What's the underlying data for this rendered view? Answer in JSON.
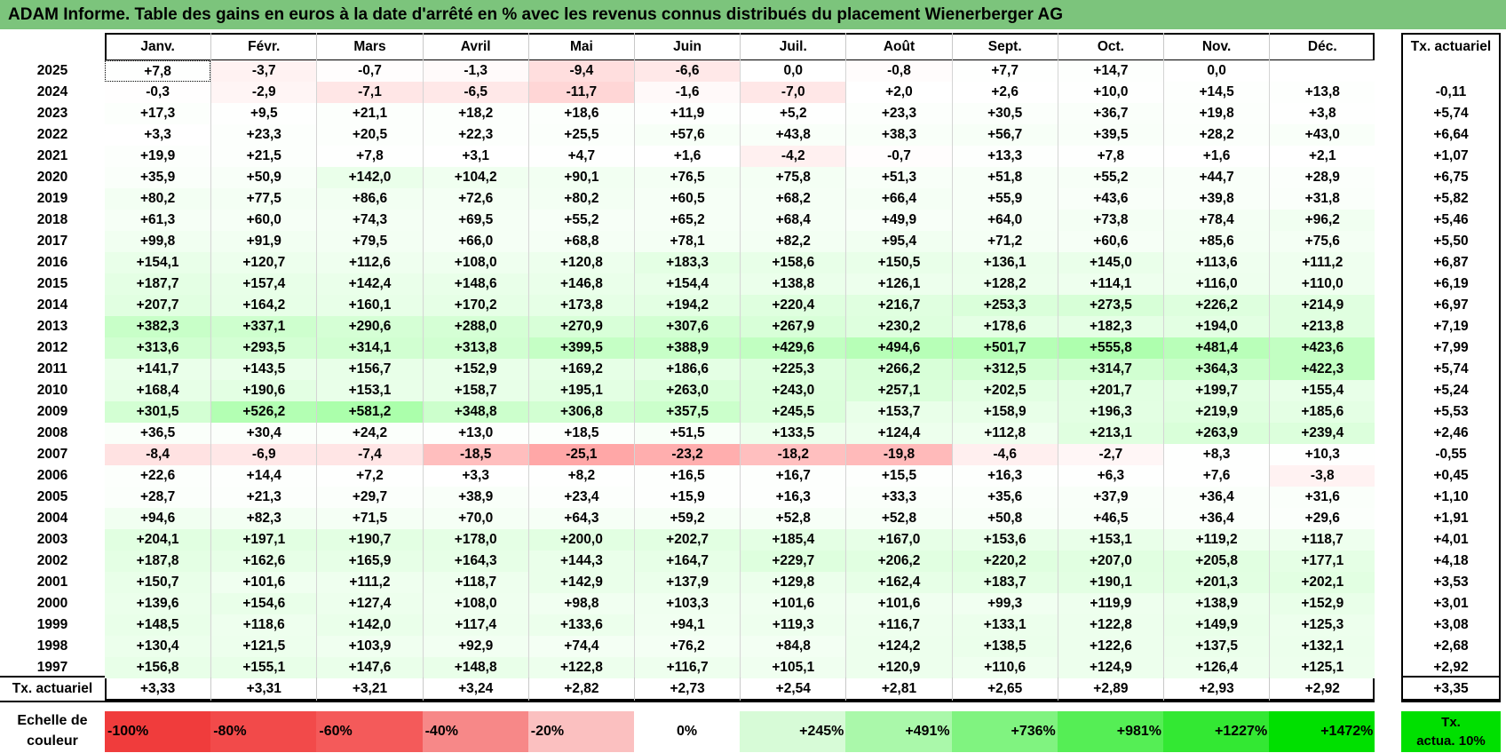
{
  "title": "ADAM Informe. Table des gains en euros à la date d'arrêté en % avec les revenus connus distribués du placement Wienerberger AG",
  "chart_data": {
    "type": "heatmap",
    "columns": [
      "Janv.",
      "Févr.",
      "Mars",
      "Avril",
      "Mai",
      "Juin",
      "Juil.",
      "Août",
      "Sept.",
      "Oct.",
      "Nov.",
      "Déc."
    ],
    "rate_header": "Tx. actuariel",
    "rows": [
      {
        "year": "2025",
        "values": [
          "+7,8",
          "-3,7",
          "-0,7",
          "-1,3",
          "-9,4",
          "-6,6",
          "0,0",
          "-0,8",
          "+7,7",
          "+14,7",
          "0,0",
          ""
        ],
        "rate": ""
      },
      {
        "year": "2024",
        "values": [
          "-0,3",
          "-2,9",
          "-7,1",
          "-6,5",
          "-11,7",
          "-1,6",
          "-7,0",
          "+2,0",
          "+2,6",
          "+10,0",
          "+14,5",
          "+13,8"
        ],
        "rate": "-0,11"
      },
      {
        "year": "2023",
        "values": [
          "+17,3",
          "+9,5",
          "+21,1",
          "+18,2",
          "+18,6",
          "+11,9",
          "+5,2",
          "+23,3",
          "+30,5",
          "+36,7",
          "+19,8",
          "+3,8"
        ],
        "rate": "+5,74"
      },
      {
        "year": "2022",
        "values": [
          "+3,3",
          "+23,3",
          "+20,5",
          "+22,3",
          "+25,5",
          "+57,6",
          "+43,8",
          "+38,3",
          "+56,7",
          "+39,5",
          "+28,2",
          "+43,0"
        ],
        "rate": "+6,64"
      },
      {
        "year": "2021",
        "values": [
          "+19,9",
          "+21,5",
          "+7,8",
          "+3,1",
          "+4,7",
          "+1,6",
          "-4,2",
          "-0,7",
          "+13,3",
          "+7,8",
          "+1,6",
          "+2,1"
        ],
        "rate": "+1,07"
      },
      {
        "year": "2020",
        "values": [
          "+35,9",
          "+50,9",
          "+142,0",
          "+104,2",
          "+90,1",
          "+76,5",
          "+75,8",
          "+51,3",
          "+51,8",
          "+55,2",
          "+44,7",
          "+28,9"
        ],
        "rate": "+6,75"
      },
      {
        "year": "2019",
        "values": [
          "+80,2",
          "+77,5",
          "+86,6",
          "+72,6",
          "+80,2",
          "+60,5",
          "+68,2",
          "+66,4",
          "+55,9",
          "+43,6",
          "+39,8",
          "+31,8"
        ],
        "rate": "+5,82"
      },
      {
        "year": "2018",
        "values": [
          "+61,3",
          "+60,0",
          "+74,3",
          "+69,5",
          "+55,2",
          "+65,2",
          "+68,4",
          "+49,9",
          "+64,0",
          "+73,8",
          "+78,4",
          "+96,2"
        ],
        "rate": "+5,46"
      },
      {
        "year": "2017",
        "values": [
          "+99,8",
          "+91,9",
          "+79,5",
          "+66,0",
          "+68,8",
          "+78,1",
          "+82,2",
          "+95,4",
          "+71,2",
          "+60,6",
          "+85,6",
          "+75,6"
        ],
        "rate": "+5,50"
      },
      {
        "year": "2016",
        "values": [
          "+154,1",
          "+120,7",
          "+112,6",
          "+108,0",
          "+120,8",
          "+183,3",
          "+158,6",
          "+150,5",
          "+136,1",
          "+145,0",
          "+113,6",
          "+111,2"
        ],
        "rate": "+6,87"
      },
      {
        "year": "2015",
        "values": [
          "+187,7",
          "+157,4",
          "+142,4",
          "+148,6",
          "+146,8",
          "+154,4",
          "+138,8",
          "+126,1",
          "+128,2",
          "+114,1",
          "+116,0",
          "+110,0"
        ],
        "rate": "+6,19"
      },
      {
        "year": "2014",
        "values": [
          "+207,7",
          "+164,2",
          "+160,1",
          "+170,2",
          "+173,8",
          "+194,2",
          "+220,4",
          "+216,7",
          "+253,3",
          "+273,5",
          "+226,2",
          "+214,9"
        ],
        "rate": "+6,97"
      },
      {
        "year": "2013",
        "values": [
          "+382,3",
          "+337,1",
          "+290,6",
          "+288,0",
          "+270,9",
          "+307,6",
          "+267,9",
          "+230,2",
          "+178,6",
          "+182,3",
          "+194,0",
          "+213,8"
        ],
        "rate": "+7,19"
      },
      {
        "year": "2012",
        "values": [
          "+313,6",
          "+293,5",
          "+314,1",
          "+313,8",
          "+399,5",
          "+388,9",
          "+429,6",
          "+494,6",
          "+501,7",
          "+555,8",
          "+481,4",
          "+423,6"
        ],
        "rate": "+7,99"
      },
      {
        "year": "2011",
        "values": [
          "+141,7",
          "+143,5",
          "+156,7",
          "+152,9",
          "+169,2",
          "+186,6",
          "+225,3",
          "+266,2",
          "+312,5",
          "+314,7",
          "+364,3",
          "+422,3"
        ],
        "rate": "+5,74"
      },
      {
        "year": "2010",
        "values": [
          "+168,4",
          "+190,6",
          "+153,1",
          "+158,7",
          "+195,1",
          "+263,0",
          "+243,0",
          "+257,1",
          "+202,5",
          "+201,7",
          "+199,7",
          "+155,4"
        ],
        "rate": "+5,24"
      },
      {
        "year": "2009",
        "values": [
          "+301,5",
          "+526,2",
          "+581,2",
          "+348,8",
          "+306,8",
          "+357,5",
          "+245,5",
          "+153,7",
          "+158,9",
          "+196,3",
          "+219,9",
          "+185,6"
        ],
        "rate": "+5,53"
      },
      {
        "year": "2008",
        "values": [
          "+36,5",
          "+30,4",
          "+24,2",
          "+13,0",
          "+18,5",
          "+51,5",
          "+133,5",
          "+124,4",
          "+112,8",
          "+213,1",
          "+263,9",
          "+239,4"
        ],
        "rate": "+2,46"
      },
      {
        "year": "2007",
        "values": [
          "-8,4",
          "-6,9",
          "-7,4",
          "-18,5",
          "-25,1",
          "-23,2",
          "-18,2",
          "-19,8",
          "-4,6",
          "-2,7",
          "+8,3",
          "+10,3"
        ],
        "rate": "-0,55"
      },
      {
        "year": "2006",
        "values": [
          "+22,6",
          "+14,4",
          "+7,2",
          "+3,3",
          "+8,2",
          "+16,5",
          "+16,7",
          "+15,5",
          "+16,3",
          "+6,3",
          "+7,6",
          "-3,8"
        ],
        "rate": "+0,45"
      },
      {
        "year": "2005",
        "values": [
          "+28,7",
          "+21,3",
          "+29,7",
          "+38,9",
          "+23,4",
          "+15,9",
          "+16,3",
          "+33,3",
          "+35,6",
          "+37,9",
          "+36,4",
          "+31,6"
        ],
        "rate": "+1,10"
      },
      {
        "year": "2004",
        "values": [
          "+94,6",
          "+82,3",
          "+71,5",
          "+70,0",
          "+64,3",
          "+59,2",
          "+52,8",
          "+52,8",
          "+50,8",
          "+46,5",
          "+36,4",
          "+29,6"
        ],
        "rate": "+1,91"
      },
      {
        "year": "2003",
        "values": [
          "+204,1",
          "+197,1",
          "+190,7",
          "+178,0",
          "+200,0",
          "+202,7",
          "+185,4",
          "+167,0",
          "+153,6",
          "+153,1",
          "+119,2",
          "+118,7"
        ],
        "rate": "+4,01"
      },
      {
        "year": "2002",
        "values": [
          "+187,8",
          "+162,6",
          "+165,9",
          "+164,3",
          "+144,3",
          "+164,7",
          "+229,7",
          "+206,2",
          "+220,2",
          "+207,0",
          "+205,8",
          "+177,1"
        ],
        "rate": "+4,18"
      },
      {
        "year": "2001",
        "values": [
          "+150,7",
          "+101,6",
          "+111,2",
          "+118,7",
          "+142,9",
          "+137,9",
          "+129,8",
          "+162,4",
          "+183,7",
          "+190,1",
          "+201,3",
          "+202,1"
        ],
        "rate": "+3,53"
      },
      {
        "year": "2000",
        "values": [
          "+139,6",
          "+154,6",
          "+127,4",
          "+108,0",
          "+98,8",
          "+103,3",
          "+101,6",
          "+101,6",
          "+99,3",
          "+119,9",
          "+138,9",
          "+152,9"
        ],
        "rate": "+3,01"
      },
      {
        "year": "1999",
        "values": [
          "+148,5",
          "+118,6",
          "+142,0",
          "+117,4",
          "+133,6",
          "+94,1",
          "+119,3",
          "+116,7",
          "+133,1",
          "+122,8",
          "+149,9",
          "+125,3"
        ],
        "rate": "+3,08"
      },
      {
        "year": "1998",
        "values": [
          "+130,4",
          "+121,5",
          "+103,9",
          "+92,9",
          "+74,4",
          "+76,2",
          "+84,8",
          "+124,2",
          "+138,5",
          "+122,6",
          "+137,5",
          "+132,1"
        ],
        "rate": "+2,68"
      },
      {
        "year": "1997",
        "values": [
          "+156,8",
          "+155,1",
          "+147,6",
          "+148,8",
          "+122,8",
          "+116,7",
          "+105,1",
          "+120,9",
          "+110,6",
          "+124,9",
          "+126,4",
          "+125,1"
        ],
        "rate": "+2,92"
      }
    ],
    "footer": {
      "label": "Tx. actuariel",
      "values": [
        "+3,33",
        "+3,31",
        "+3,21",
        "+3,24",
        "+2,82",
        "+2,73",
        "+2,54",
        "+2,81",
        "+2,65",
        "+2,89",
        "+2,93",
        "+2,92"
      ],
      "rate": "+3,35"
    }
  },
  "legend": {
    "label_line1": "Echelle de",
    "label_line2": "couleur",
    "stops": [
      {
        "label": "-100%",
        "color": "#f03c3c"
      },
      {
        "label": "-80%",
        "color": "#f24a4a"
      },
      {
        "label": "-60%",
        "color": "#f45a5a"
      },
      {
        "label": "-40%",
        "color": "#f78888"
      },
      {
        "label": "-20%",
        "color": "#fbc0c0"
      },
      {
        "label": "0%",
        "color": "#ffffff"
      },
      {
        "label": "+245%",
        "color": "#d7fbd7"
      },
      {
        "label": "+491%",
        "color": "#aaf8aa"
      },
      {
        "label": "+736%",
        "color": "#80f380"
      },
      {
        "label": "+981%",
        "color": "#55ee55"
      },
      {
        "label": "+1227%",
        "color": "#33e833"
      },
      {
        "label": "+1472%",
        "color": "#00e000"
      }
    ],
    "rate_line1": "Tx.",
    "rate_line2": "actua. 10%",
    "rate_color": "#00e000"
  },
  "colors": {
    "title_bg": "#7cc47c"
  }
}
